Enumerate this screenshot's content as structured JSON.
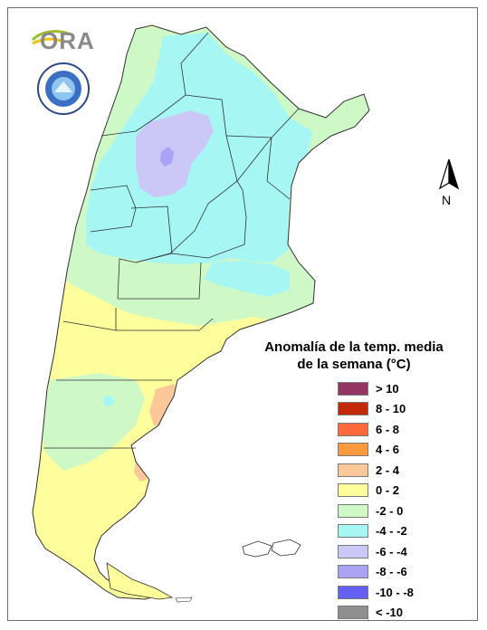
{
  "logo": {
    "brand_text": "ORA"
  },
  "north": {
    "label": "N"
  },
  "legend": {
    "title_line1": "Anomalía de la temp. media",
    "title_line2": "de la semana (°C)",
    "items": [
      {
        "label": "> 10",
        "color": "#943463"
      },
      {
        "label": "8 - 10",
        "color": "#c22a0a"
      },
      {
        "label": "6 - 8",
        "color": "#ff6a3d"
      },
      {
        "label": "4 - 6",
        "color": "#ff9a3e"
      },
      {
        "label": "2 - 4",
        "color": "#fcc89a"
      },
      {
        "label": "0 - 2",
        "color": "#fefe9c"
      },
      {
        "label": "-2 - 0",
        "color": "#cff8c7"
      },
      {
        "label": "-4 - -2",
        "color": "#a6f6f4"
      },
      {
        "label": "-6 - -4",
        "color": "#cbc7f6"
      },
      {
        "label": "-8 - -6",
        "color": "#a9a2f5"
      },
      {
        "label": "-10 - -8",
        "color": "#6560f2"
      },
      {
        "label": "< -10",
        "color": "#8f8f8f"
      }
    ]
  }
}
